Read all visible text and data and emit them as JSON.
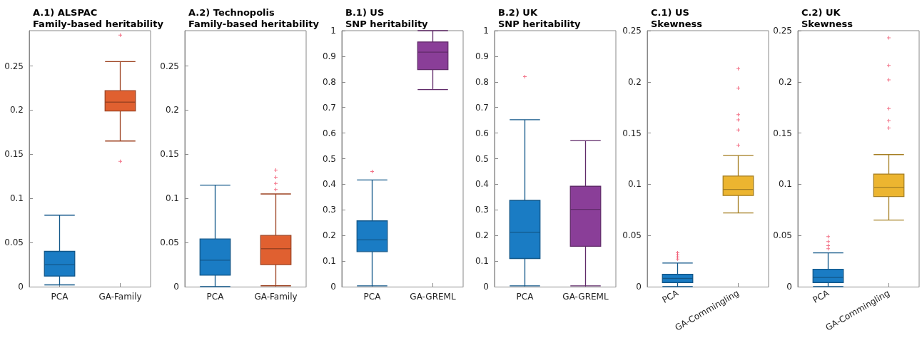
{
  "chart_data": [
    {
      "type": "box",
      "title": "A.1) ALSPAC",
      "subtitle": "Family-based heritability",
      "categories": [
        "PCA",
        "GA-Family"
      ],
      "colors": [
        "#1a7cc4",
        "#e06030"
      ],
      "marker": "cross",
      "boxes": [
        {
          "low": 0.002,
          "q1": 0.012,
          "median": 0.025,
          "q3": 0.04,
          "high": 0.081
        },
        {
          "low": 0.165,
          "q1": 0.199,
          "median": 0.209,
          "q3": 0.222,
          "high": 0.255,
          "outliers": [
            0.285,
            0.142
          ]
        }
      ],
      "ylim": [
        0,
        0.29
      ],
      "yticks": [
        0,
        0.05,
        0.1,
        0.15,
        0.2,
        0.25
      ],
      "grid": false
    },
    {
      "type": "box",
      "title": "A.2) Technopolis",
      "subtitle": "Family-based heritability",
      "categories": [
        "PCA",
        "GA-Family"
      ],
      "colors": [
        "#1a7cc4",
        "#e06030"
      ],
      "marker": "cross",
      "boxes": [
        {
          "low": 0,
          "q1": 0.013,
          "median": 0.03,
          "q3": 0.054,
          "high": 0.115
        },
        {
          "low": 0.001,
          "q1": 0.025,
          "median": 0.043,
          "q3": 0.058,
          "high": 0.105,
          "outliers": [
            0.11,
            0.117,
            0.124,
            0.132
          ]
        }
      ],
      "ylim": [
        0,
        0.29
      ],
      "yticks": [
        0,
        0.05,
        0.1,
        0.15,
        0.2,
        0.25
      ],
      "grid": false
    },
    {
      "type": "box",
      "title": "B.1) US",
      "subtitle": "SNP heritability",
      "categories": [
        "PCA",
        "GA-GREML"
      ],
      "colors": [
        "#1a7cc4",
        "#8a3e98"
      ],
      "marker": "cross",
      "boxes": [
        {
          "low": 0.003,
          "q1": 0.137,
          "median": 0.183,
          "q3": 0.257,
          "high": 0.417,
          "outliers": [
            0.45
          ]
        },
        {
          "low": 0.77,
          "q1": 0.848,
          "median": 0.916,
          "q3": 0.956,
          "high": 1
        }
      ],
      "ylim": [
        0,
        1
      ],
      "yticks": [
        0,
        0.1,
        0.2,
        0.3,
        0.4,
        0.5,
        0.6,
        0.7,
        0.8,
        0.9,
        1
      ],
      "grid": false
    },
    {
      "type": "box",
      "title": "B.2) UK",
      "subtitle": "SNP heritability",
      "categories": [
        "PCA",
        "GA-GREML"
      ],
      "colors": [
        "#1a7cc4",
        "#8a3e98"
      ],
      "marker": "cross",
      "boxes": [
        {
          "low": 0.003,
          "q1": 0.11,
          "median": 0.213,
          "q3": 0.337,
          "high": 0.652,
          "outliers": [
            0.82
          ]
        },
        {
          "low": 0.003,
          "q1": 0.158,
          "median": 0.302,
          "q3": 0.392,
          "high": 0.57
        }
      ],
      "ylim": [
        0,
        1
      ],
      "yticks": [
        0,
        0.1,
        0.2,
        0.3,
        0.4,
        0.5,
        0.6,
        0.7,
        0.8,
        0.9,
        1
      ],
      "grid": false
    },
    {
      "type": "box",
      "title": "C.1) US",
      "subtitle": "Skewness",
      "categories": [
        "PCA",
        "GA-Commingling"
      ],
      "colors": [
        "#1a7cc4",
        "#ecb530"
      ],
      "marker": "cross",
      "boxes": [
        {
          "low": 0,
          "q1": 0.004,
          "median": 0.008,
          "q3": 0.012,
          "high": 0.023,
          "outliers": [
            0.027,
            0.029,
            0.031,
            0.033
          ]
        },
        {
          "low": 0.072,
          "q1": 0.089,
          "median": 0.095,
          "q3": 0.108,
          "high": 0.128,
          "outliers": [
            0.138,
            0.153,
            0.163,
            0.168,
            0.194,
            0.213
          ]
        }
      ],
      "ylim": [
        0,
        0.25
      ],
      "yticks": [
        0,
        0.05,
        0.1,
        0.15,
        0.2,
        0.25
      ],
      "grid": false
    },
    {
      "type": "box",
      "title": "C.2) UK",
      "subtitle": "Skewness",
      "categories": [
        "PCA",
        "GA-Commingling"
      ],
      "colors": [
        "#1a7cc4",
        "#ecb530"
      ],
      "marker": "cross",
      "boxes": [
        {
          "low": 0,
          "q1": 0.004,
          "median": 0.009,
          "q3": 0.017,
          "high": 0.033,
          "outliers": [
            0.037,
            0.04,
            0.044,
            0.049
          ]
        },
        {
          "low": 0.065,
          "q1": 0.088,
          "median": 0.097,
          "q3": 0.11,
          "high": 0.129,
          "outliers": [
            0.155,
            0.162,
            0.174,
            0.202,
            0.216,
            0.243
          ]
        }
      ],
      "ylim": [
        0,
        0.25
      ],
      "yticks": [
        0,
        0.05,
        0.1,
        0.15,
        0.2,
        0.25
      ],
      "grid": false
    }
  ]
}
